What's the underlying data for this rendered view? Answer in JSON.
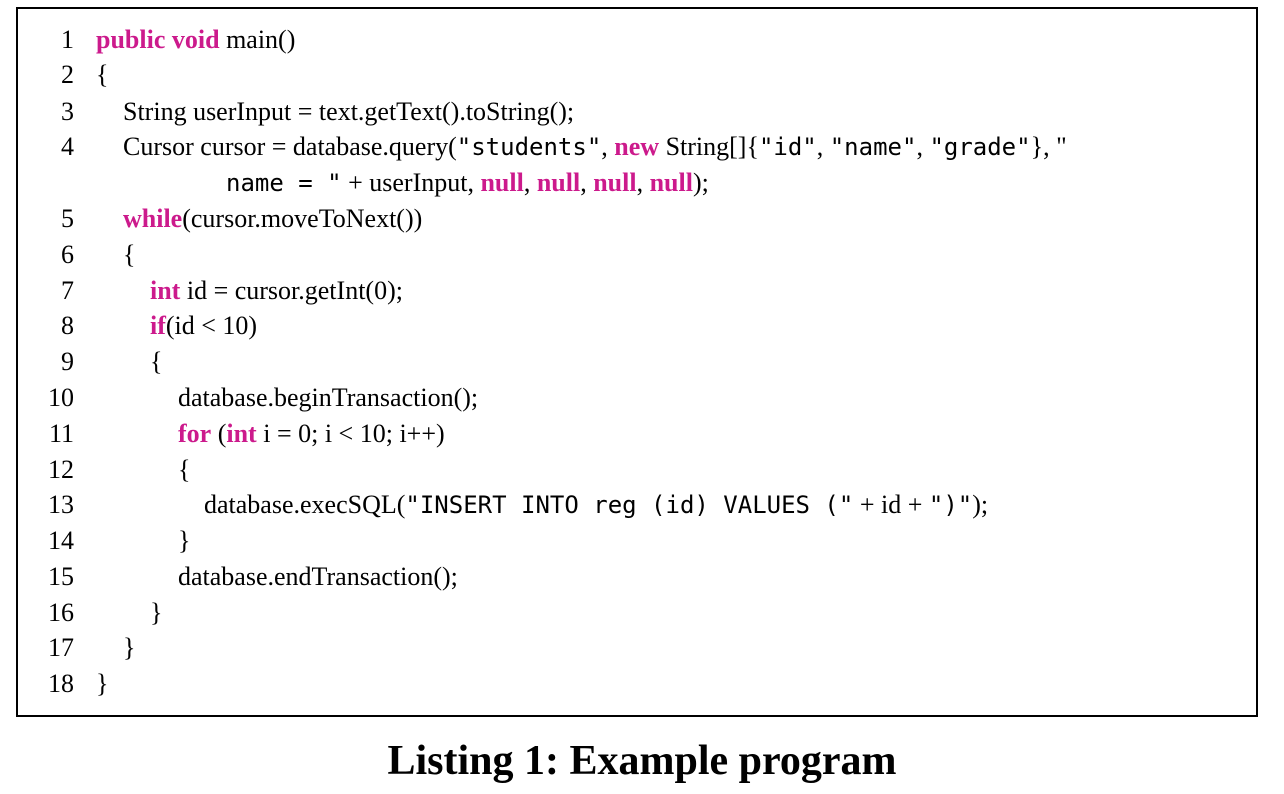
{
  "listing": {
    "lines": [
      {
        "n": "1",
        "indent": 0,
        "segs": [
          {
            "t": "public",
            "k": "kw"
          },
          {
            "t": " "
          },
          {
            "t": "void",
            "k": "kw"
          },
          {
            "t": " main()"
          }
        ]
      },
      {
        "n": "2",
        "indent": 0,
        "segs": [
          {
            "t": "{"
          }
        ]
      },
      {
        "n": "3",
        "indent": 1,
        "segs": [
          {
            "t": "String userInput = text.getText().toString();"
          }
        ]
      },
      {
        "n": "4",
        "indent": 1,
        "segs": [
          {
            "t": "Cursor cursor = database.query("
          },
          {
            "t": "\"students\"",
            "k": "str"
          },
          {
            "t": ", "
          },
          {
            "t": "new",
            "k": "kw"
          },
          {
            "t": " String[]{"
          },
          {
            "t": "\"id\"",
            "k": "str"
          },
          {
            "t": ", "
          },
          {
            "t": "\"name\"",
            "k": "str"
          },
          {
            "t": ", "
          },
          {
            "t": "\"grade\"",
            "k": "str"
          },
          {
            "t": "}, \""
          }
        ]
      },
      {
        "n": "",
        "indent": 4,
        "segs": [
          {
            "t": "name = \"",
            "k": "str"
          },
          {
            "t": " + userInput, "
          },
          {
            "t": "null",
            "k": "kw"
          },
          {
            "t": ", "
          },
          {
            "t": "null",
            "k": "kw"
          },
          {
            "t": ", "
          },
          {
            "t": "null",
            "k": "kw"
          },
          {
            "t": ", "
          },
          {
            "t": "null",
            "k": "kw"
          },
          {
            "t": ");"
          }
        ]
      },
      {
        "n": "5",
        "indent": 1,
        "segs": [
          {
            "t": "while",
            "k": "kw"
          },
          {
            "t": "(cursor.moveToNext())"
          }
        ]
      },
      {
        "n": "6",
        "indent": 1,
        "segs": [
          {
            "t": "{"
          }
        ]
      },
      {
        "n": "7",
        "indent": 2,
        "segs": [
          {
            "t": "int",
            "k": "kw"
          },
          {
            "t": " id = cursor.getInt(0);"
          }
        ]
      },
      {
        "n": "8",
        "indent": 2,
        "segs": [
          {
            "t": "if",
            "k": "kw"
          },
          {
            "t": "(id < 10)"
          }
        ]
      },
      {
        "n": "9",
        "indent": 2,
        "segs": [
          {
            "t": "{"
          }
        ]
      },
      {
        "n": "10",
        "indent": 3,
        "segs": [
          {
            "t": "database.beginTransaction();"
          }
        ]
      },
      {
        "n": "11",
        "indent": 3,
        "segs": [
          {
            "t": "for",
            "k": "kw"
          },
          {
            "t": " ("
          },
          {
            "t": "int",
            "k": "kw"
          },
          {
            "t": " i = 0; i < 10; i++)"
          }
        ]
      },
      {
        "n": "12",
        "indent": 3,
        "segs": [
          {
            "t": "{"
          }
        ]
      },
      {
        "n": "13",
        "indent": 4,
        "segs": [
          {
            "t": "database.execSQL("
          },
          {
            "t": "\"INSERT INTO reg (id) VALUES (\"",
            "k": "str"
          },
          {
            "t": " + id + "
          },
          {
            "t": "\")\"",
            "k": "str"
          },
          {
            "t": ");"
          }
        ]
      },
      {
        "n": "14",
        "indent": 3,
        "segs": [
          {
            "t": "}"
          }
        ]
      },
      {
        "n": "15",
        "indent": 3,
        "segs": [
          {
            "t": "database.endTransaction();"
          }
        ]
      },
      {
        "n": "16",
        "indent": 2,
        "segs": [
          {
            "t": "}"
          }
        ]
      },
      {
        "n": "17",
        "indent": 1,
        "segs": [
          {
            "t": "}"
          }
        ]
      },
      {
        "n": "18",
        "indent": 0,
        "segs": [
          {
            "t": "}"
          }
        ]
      }
    ]
  },
  "caption": "Listing 1: Example program",
  "colors": {
    "keyword": "#cc1a8c",
    "text": "#000000"
  }
}
